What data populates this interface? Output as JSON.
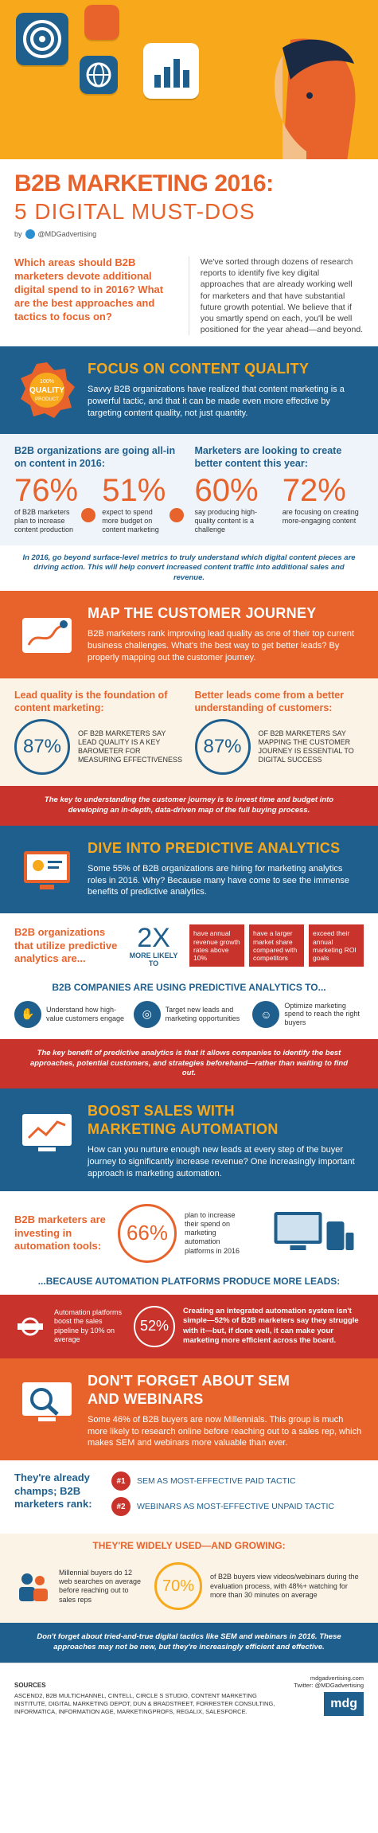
{
  "colors": {
    "orange": "#e8632b",
    "yellow": "#f7a81b",
    "blue": "#1f5f8e",
    "red": "#c8332b"
  },
  "header": {
    "title_line1": "B2B MARKETING 2016:",
    "title_line2": "5 DIGITAL MUST-DOS",
    "byline_prefix": "by",
    "byline_handle": "@MDGadvertising"
  },
  "intro": {
    "question": "Which areas should B2B marketers devote additional digital spend to in 2016? What are the best approaches and tactics to focus on?",
    "answer": "We've sorted through dozens of research reports to identify five key digital approaches that are already working well for marketers and that have substantial future growth potential. We believe that if you smartly spend on each, you'll be well positioned for the year ahead—and beyond."
  },
  "section1": {
    "title": "FOCUS ON CONTENT QUALITY",
    "badge_top": "100%",
    "badge_main": "QUALITY",
    "badge_bottom": "PRODUCT",
    "body": "Savvy B2B organizations have realized that content marketing is a powerful tactic, and that it can be made even more effective by targeting content quality, not just quantity.",
    "left_heading": "B2B organizations are going all-in on content in 2016:",
    "right_heading": "Marketers are looking to create better content this year:",
    "stats": [
      {
        "value": "76%",
        "text": "of B2B marketers plan to increase content production"
      },
      {
        "value": "51%",
        "text": "expect to spend more budget on content marketing"
      },
      {
        "value": "60%",
        "text": "say producing high-quality content is a challenge"
      },
      {
        "value": "72%",
        "text": "are focusing on creating more-engaging content"
      }
    ],
    "note": "In 2016, go beyond surface-level metrics to truly understand which digital content pieces are driving action. This will help convert increased content traffic into additional sales and revenue."
  },
  "section2": {
    "title": "MAP THE CUSTOMER JOURNEY",
    "body": "B2B marketers rank improving lead quality as one of their top current business challenges. What's the best way to get better leads? By properly mapping out the customer journey.",
    "left_heading": "Lead quality is the foundation of content marketing:",
    "right_heading": "Better leads come from a better understanding of customers:",
    "left_value": "87%",
    "left_text": "of B2B marketers say lead quality is a key barometer for measuring effectiveness",
    "right_value": "87%",
    "right_text": "of B2B marketers say mapping the customer journey is essential to digital success",
    "note": "The key to understanding the customer journey is to invest time and budget into developing an in-depth, data-driven map of the full buying process."
  },
  "section3": {
    "title": "DIVE INTO PREDICTIVE ANALYTICS",
    "body": "Some 55% of B2B organizations are hiring for marketing analytics roles in 2016. Why? Because many have come to see the immense benefits of predictive analytics.",
    "lead": "B2B organizations that utilize predictive analytics are...",
    "multiplier": "2X",
    "multiplier_text": "MORE LIKELY TO",
    "pills": [
      "have annual revenue growth rates above 10%",
      "have a larger market share compared with competitors",
      "exceed their annual marketing ROI goals"
    ],
    "uses_title": "B2B COMPANIES ARE USING PREDICTIVE ANALYTICS TO...",
    "uses": [
      {
        "icon": "handshake-icon",
        "text": "Understand how high-value customers engage"
      },
      {
        "icon": "target-icon",
        "text": "Target new leads and marketing opportunities"
      },
      {
        "icon": "people-icon",
        "text": "Optimize marketing spend to reach the right buyers"
      }
    ],
    "note": "The key benefit of predictive analytics is that it allows companies to identify the best approaches, potential customers, and strategies beforehand—rather than waiting to find out."
  },
  "section4": {
    "title_line1": "BOOST SALES WITH",
    "title_line2": "MARKETING AUTOMATION",
    "body": "How can you nurture enough new leads at every step of the buyer journey to significantly increase revenue? One increasingly important approach is marketing automation.",
    "lead": "B2B marketers are investing in automation tools:",
    "value": "66%",
    "value_text": "plan to increase their spend on marketing automation platforms in 2016",
    "because": "...BECAUSE AUTOMATION PLATFORMS PRODUCE MORE LEADS:",
    "red_left": "Automation platforms boost the sales pipeline by 10% on average",
    "red_value": "52%",
    "red_right": "Creating an integrated automation system isn't simple—52% of B2B marketers say they struggle with it—but, if done well, it can make your marketing more efficient across the board."
  },
  "section5": {
    "title_line1": "DON'T FORGET ABOUT SEM",
    "title_line2": "AND WEBINARS",
    "body": "Some 46% of B2B buyers are now Millennials. This group is much more likely to research online before reaching out to a sales rep, which makes SEM and webinars more valuable than ever.",
    "lead": "They're already champs; B2B marketers rank:",
    "ranks": [
      {
        "num": "#1",
        "text": "SEM AS MOST-EFFECTIVE PAID TACTIC"
      },
      {
        "num": "#2",
        "text": "WEBINARS AS MOST-EFFECTIVE UNPAID TACTIC"
      }
    ],
    "grow_title": "THEY'RE WIDELY USED—AND GROWING:",
    "grow_left": "Millennial buyers do 12 web searches on average before reaching out to sales reps",
    "grow_value": "70%",
    "grow_right": "of B2B buyers view videos/webinars during the evaluation process, with 48%+ watching for more than 30 minutes on average",
    "note": "Don't forget about tried-and-true digital tactics like SEM and webinars in 2016. These approaches may not be new, but they're increasingly efficient and effective."
  },
  "footer": {
    "sources_label": "SOURCES",
    "sources": "ASCEND2, B2B MULTICHANNEL, CINTELL, CIRCLE S STUDIO, CONTENT MARKETING INSTITUTE, DIGITAL MARKETING DEPOT, DUN & BRADSTREET, FORRESTER CONSULTING, INFORMATICA, INFORMATION AGE, MARKETINGPROFS, REGALIX, SALESFORCE.",
    "site": "mdgadvertising.com",
    "twitter": "Twitter: @MDGadvertising",
    "logo": "mdg"
  }
}
